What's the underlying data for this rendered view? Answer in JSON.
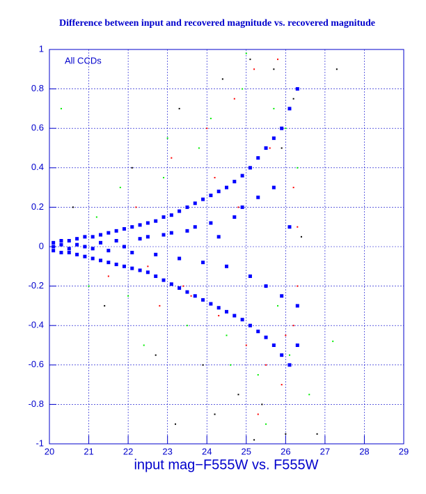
{
  "chart_data": {
    "type": "scatter",
    "title": "Difference between input and recovered magnitude vs. recovered magnitude",
    "x_label": "input mag−F555W vs. F555W",
    "annotation": "All CCDs",
    "xlim": [
      20,
      29
    ],
    "xticks": [
      20,
      21,
      22,
      23,
      24,
      25,
      26,
      27,
      28,
      29
    ],
    "ylim": [
      -1,
      1
    ],
    "yticks": [
      -1,
      -0.8,
      -0.6,
      -0.4,
      -0.2,
      0,
      0.2,
      0.4,
      0.6,
      0.8,
      1
    ],
    "grid": true,
    "axis_color": "#0000cc",
    "series": [
      {
        "color": "#0000ff",
        "marker_size": 5,
        "x": [
          20.1,
          20.3,
          20.5,
          20.7,
          20.9,
          21.1,
          21.3,
          21.5,
          21.7,
          21.9,
          22.1,
          22.3,
          22.5,
          22.7,
          22.9,
          23.1,
          23.3,
          23.5,
          23.7,
          23.9,
          24.1,
          24.3,
          24.5,
          24.7,
          24.9,
          25.1,
          25.3,
          25.5,
          25.7,
          25.9,
          26.1,
          26.3,
          20.1,
          20.3,
          20.5,
          20.7,
          20.9,
          21.1,
          21.3,
          21.5,
          21.7,
          21.9,
          22.1,
          22.3,
          22.5,
          22.7,
          22.9,
          23.1,
          23.3,
          23.5,
          23.7,
          23.9,
          24.1,
          24.3,
          24.5,
          24.7,
          24.9,
          25.1,
          25.3,
          25.5,
          25.7,
          25.9,
          26.1,
          26.3,
          20.1,
          20.3,
          20.5,
          20.7,
          20.9,
          21.1,
          21.3,
          21.5,
          21.7,
          21.9,
          22.1,
          22.3,
          22.5,
          22.7,
          22.9,
          23.1,
          23.3,
          23.5,
          23.7,
          23.9,
          24.1,
          24.3,
          24.5,
          24.7,
          24.9,
          25.1,
          25.3,
          25.5,
          25.7,
          25.9,
          26.1,
          26.3
        ],
        "values": [
          0.02,
          0.03,
          0.03,
          0.04,
          0.05,
          0.05,
          0.06,
          0.07,
          0.08,
          0.09,
          0.1,
          0.11,
          0.12,
          0.13,
          0.15,
          0.16,
          0.18,
          0.2,
          0.22,
          0.24,
          0.26,
          0.28,
          0.3,
          0.33,
          0.36,
          0.4,
          0.45,
          0.5,
          0.55,
          0.6,
          0.7,
          0.8,
          -0.02,
          -0.03,
          -0.03,
          -0.04,
          -0.05,
          -0.06,
          -0.07,
          -0.08,
          -0.09,
          -0.1,
          -0.11,
          -0.12,
          -0.13,
          -0.15,
          -0.17,
          -0.19,
          -0.21,
          -0.23,
          -0.25,
          -0.27,
          -0.29,
          -0.31,
          -0.33,
          -0.35,
          -0.37,
          -0.4,
          -0.43,
          -0.46,
          -0.5,
          -0.55,
          -0.6,
          -0.5,
          0,
          0.01,
          -0.01,
          0.01,
          0,
          -0.01,
          0.02,
          -0.02,
          0.03,
          0,
          -0.03,
          0.04,
          0.05,
          -0.04,
          0.06,
          0.07,
          -0.06,
          0.08,
          0.1,
          -0.08,
          0.12,
          0.05,
          -0.1,
          0.15,
          0.2,
          -0.15,
          0.25,
          -0.2,
          0.3,
          -0.25,
          0.1,
          -0.3
        ]
      },
      {
        "color": "#ff0000",
        "marker_size": 2,
        "x": [
          21.5,
          22.2,
          22.8,
          23.1,
          23.6,
          24.0,
          24.3,
          24.7,
          25.0,
          25.2,
          25.5,
          25.8,
          26.0,
          26.2,
          26.3,
          26.3,
          26.2,
          25.9,
          25.6,
          25.3,
          24.8,
          24.2,
          23.4,
          22.5
        ],
        "values": [
          -0.15,
          0.2,
          -0.3,
          0.45,
          -0.25,
          0.6,
          -0.35,
          0.75,
          -0.5,
          0.9,
          -0.6,
          0.95,
          -0.45,
          0.3,
          0.1,
          -0.2,
          -0.4,
          -0.7,
          0.5,
          -0.85,
          0.2,
          0.35,
          -0.2,
          -0.1
        ]
      },
      {
        "color": "#00ee00",
        "marker_size": 2,
        "x": [
          20.3,
          21.0,
          21.8,
          22.4,
          23.0,
          23.5,
          24.1,
          24.5,
          24.9,
          25.3,
          25.7,
          26.1,
          26.3,
          26.6,
          27.2,
          25.5,
          24.6,
          23.8,
          22.9,
          22.0,
          21.2,
          25.0,
          25.8,
          26.0
        ],
        "values": [
          0.7,
          -0.2,
          0.3,
          -0.5,
          0.55,
          -0.4,
          0.65,
          -0.45,
          0.8,
          -0.65,
          0.7,
          -0.55,
          0.4,
          -0.75,
          -0.48,
          -0.9,
          -0.6,
          0.5,
          0.35,
          -0.25,
          0.15,
          0.98,
          -0.3,
          0.6
        ]
      },
      {
        "color": "#000000",
        "marker_size": 2,
        "x": [
          20.6,
          21.4,
          22.1,
          22.7,
          23.3,
          23.9,
          24.4,
          24.8,
          25.1,
          25.4,
          25.7,
          26.0,
          26.2,
          26.8,
          27.3,
          23.2,
          24.2,
          25.2,
          25.9,
          26.4
        ],
        "values": [
          0.2,
          -0.3,
          0.4,
          -0.55,
          0.7,
          -0.6,
          0.85,
          -0.75,
          0.95,
          -0.8,
          0.9,
          -0.95,
          0.75,
          -0.95,
          0.9,
          -0.9,
          -0.85,
          -0.98,
          0.5,
          0.05
        ]
      }
    ]
  }
}
